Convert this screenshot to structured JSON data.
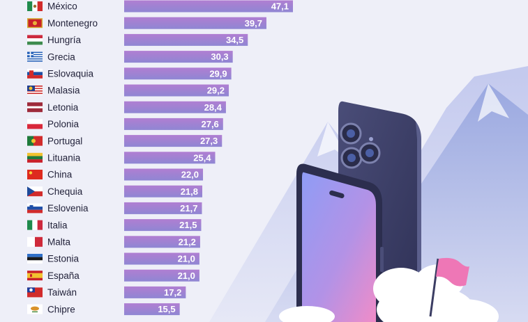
{
  "chart_data": {
    "type": "bar",
    "orientation": "horizontal",
    "title": "",
    "xlabel": "",
    "ylabel": "",
    "xlim": [
      0,
      50
    ],
    "grid": false,
    "categories": [
      "México",
      "Montenegro",
      "Hungría",
      "Grecia",
      "Eslovaquia",
      "Malasia",
      "Letonia",
      "Polonia",
      "Portugal",
      "Lituania",
      "China",
      "Chequia",
      "Eslovenia",
      "Italia",
      "Malta",
      "Estonia",
      "España",
      "Taiwán",
      "Chipre"
    ],
    "values": [
      47.1,
      39.7,
      34.5,
      30.3,
      29.9,
      29.2,
      28.4,
      27.6,
      27.3,
      25.4,
      22.0,
      21.8,
      21.7,
      21.5,
      21.2,
      21.0,
      21.0,
      17.2,
      15.5
    ],
    "value_labels": [
      "47,1",
      "39,7",
      "34,5",
      "30,3",
      "29,9",
      "29,2",
      "28,4",
      "27,6",
      "27,3",
      "25,4",
      "22,0",
      "21,8",
      "21,7",
      "21,5",
      "21,2",
      "21,0",
      "21,0",
      "17,2",
      "15,5"
    ],
    "flag_icons": [
      "mexico-flag-icon",
      "montenegro-flag-icon",
      "hungary-flag-icon",
      "greece-flag-icon",
      "slovakia-flag-icon",
      "malaysia-flag-icon",
      "latvia-flag-icon",
      "poland-flag-icon",
      "portugal-flag-icon",
      "lithuania-flag-icon",
      "china-flag-icon",
      "czechia-flag-icon",
      "slovenia-flag-icon",
      "italy-flag-icon",
      "malta-flag-icon",
      "estonia-flag-icon",
      "spain-flag-icon",
      "taiwan-flag-icon",
      "cyprus-flag-icon"
    ],
    "colors": {
      "bar_top": "#b07ed2",
      "bar_bottom": "#8f86d3",
      "value_text": "#ffffff",
      "label_text": "#22223a"
    }
  },
  "illustration": {
    "icons": [
      "mountain-icon",
      "smartphone-icon",
      "flag-pennant-icon",
      "cloud-icon"
    ],
    "colors": {
      "mountain": "#aeb8e6",
      "phone_body": "#3b3d63",
      "flag": "#ee77b6"
    }
  }
}
